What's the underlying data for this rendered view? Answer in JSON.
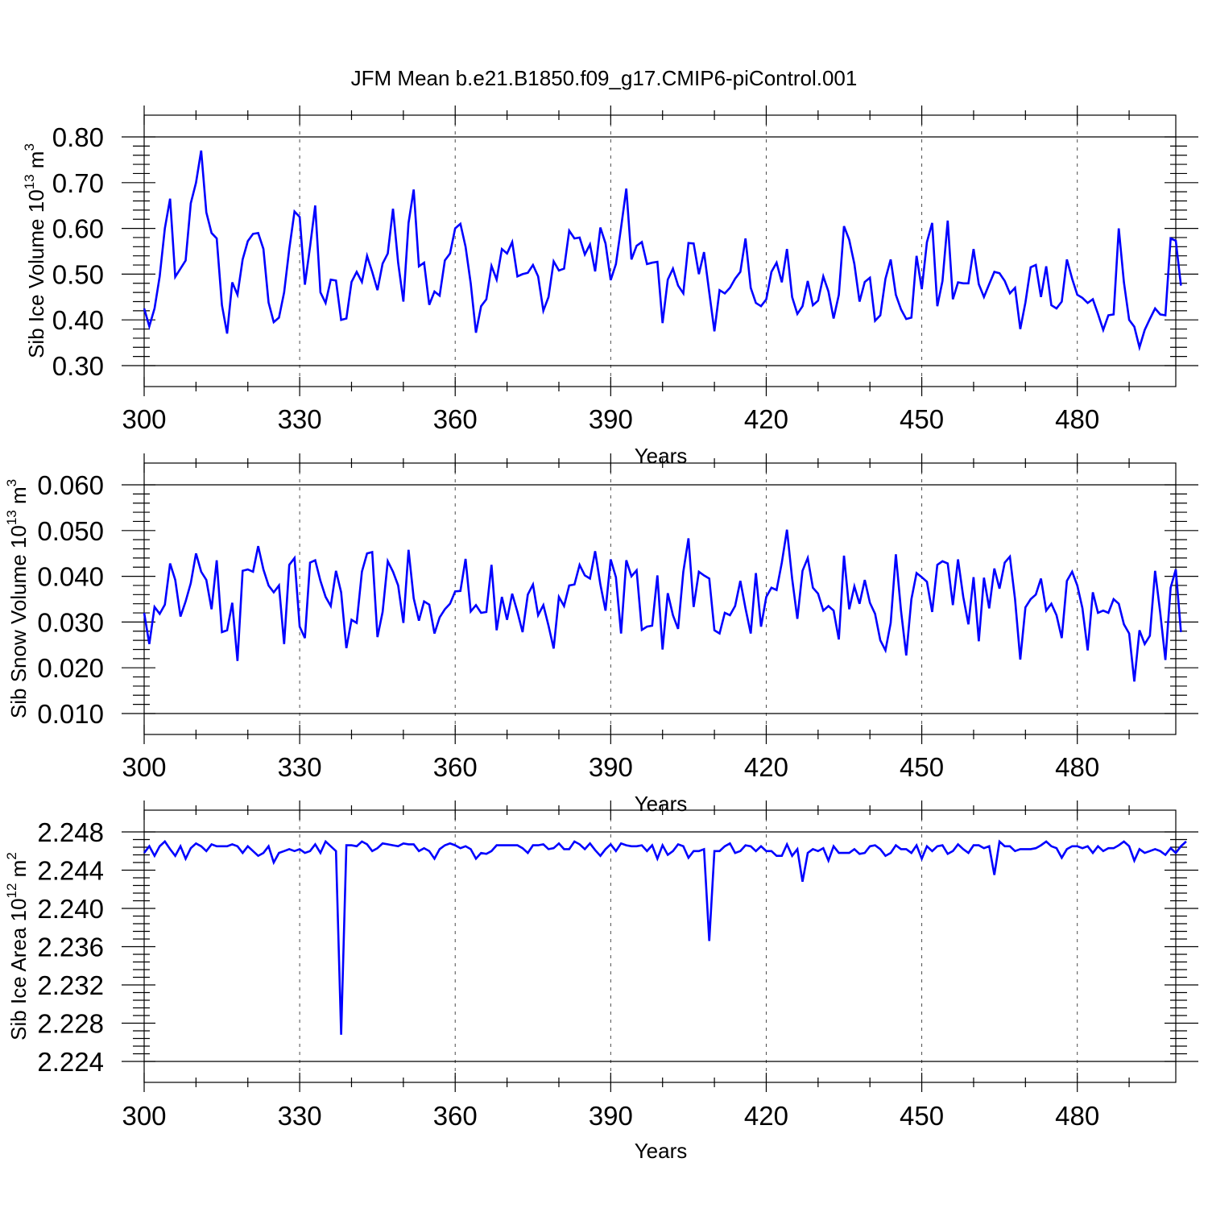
{
  "title": "JFM Mean b.e21.B1850.f09_g17.CMIP6-piControl.001",
  "chart_data": [
    {
      "type": "line",
      "ylabel": {
        "main": "Sib Ice Volume 10",
        "exp": "13",
        "unit": " m",
        "unit_exp": "3"
      },
      "xlabel": "Years",
      "xlim": [
        300,
        499
      ],
      "ylim": [
        0.3,
        0.8
      ],
      "xticks": [
        300,
        330,
        360,
        390,
        420,
        450,
        480
      ],
      "xtick_labels": [
        "300",
        "330",
        "360",
        "390",
        "420",
        "450",
        "480"
      ],
      "yticks": [
        0.3,
        0.4,
        0.5,
        0.6,
        0.7,
        0.8
      ],
      "ytick_labels": [
        "0.30",
        "0.40",
        "0.50",
        "0.60",
        "0.70",
        "0.80"
      ],
      "x_start": 300,
      "color": "#0000ff",
      "values": [
        0.425,
        0.386,
        0.425,
        0.495,
        0.6,
        0.665,
        0.494,
        0.512,
        0.53,
        0.655,
        0.7,
        0.77,
        0.635,
        0.59,
        0.578,
        0.432,
        0.37,
        0.482,
        0.455,
        0.532,
        0.572,
        0.588,
        0.59,
        0.555,
        0.438,
        0.395,
        0.405,
        0.46,
        0.555,
        0.637,
        0.625,
        0.477,
        0.56,
        0.65,
        0.46,
        0.437,
        0.488,
        0.486,
        0.4,
        0.403,
        0.483,
        0.505,
        0.483,
        0.54,
        0.505,
        0.465,
        0.523,
        0.545,
        0.643,
        0.525,
        0.44,
        0.612,
        0.685,
        0.517,
        0.525,
        0.433,
        0.462,
        0.453,
        0.53,
        0.545,
        0.6,
        0.61,
        0.56,
        0.48,
        0.372,
        0.43,
        0.445,
        0.518,
        0.488,
        0.555,
        0.545,
        0.57,
        0.495,
        0.5,
        0.503,
        0.52,
        0.495,
        0.42,
        0.45,
        0.528,
        0.508,
        0.512,
        0.595,
        0.578,
        0.58,
        0.543,
        0.565,
        0.506,
        0.602,
        0.567,
        0.487,
        0.522,
        0.602,
        0.687,
        0.532,
        0.562,
        0.57,
        0.522,
        0.525,
        0.527,
        0.393,
        0.488,
        0.512,
        0.475,
        0.458,
        0.568,
        0.567,
        0.5,
        0.548,
        0.46,
        0.375,
        0.465,
        0.458,
        0.47,
        0.49,
        0.505,
        0.578,
        0.47,
        0.437,
        0.43,
        0.445,
        0.505,
        0.525,
        0.482,
        0.555,
        0.45,
        0.413,
        0.43,
        0.485,
        0.432,
        0.442,
        0.495,
        0.462,
        0.403,
        0.455,
        0.605,
        0.575,
        0.522,
        0.44,
        0.483,
        0.492,
        0.398,
        0.41,
        0.49,
        0.532,
        0.455,
        0.423,
        0.402,
        0.405,
        0.54,
        0.467,
        0.57,
        0.612,
        0.43,
        0.485,
        0.617,
        0.445,
        0.482,
        0.48,
        0.48,
        0.555,
        0.478,
        0.45,
        0.478,
        0.505,
        0.502,
        0.485,
        0.458,
        0.47,
        0.38,
        0.438,
        0.515,
        0.52,
        0.45,
        0.517,
        0.432,
        0.425,
        0.44,
        0.532,
        0.49,
        0.455,
        0.448,
        0.437,
        0.445,
        0.413,
        0.378,
        0.41,
        0.412,
        0.6,
        0.482,
        0.4,
        0.385,
        0.34,
        0.378,
        0.402,
        0.425,
        0.412,
        0.41,
        0.578,
        0.573,
        0.475
      ]
    },
    {
      "type": "line",
      "ylabel": {
        "main": "Sib Snow Volume 10",
        "exp": "13",
        "unit": " m",
        "unit_exp": "3"
      },
      "xlabel": "Years",
      "xlim": [
        300,
        499
      ],
      "ylim": [
        0.01,
        0.06
      ],
      "xticks": [
        300,
        330,
        360,
        390,
        420,
        450,
        480
      ],
      "xtick_labels": [
        "300",
        "330",
        "360",
        "390",
        "420",
        "450",
        "480"
      ],
      "yticks": [
        0.01,
        0.02,
        0.03,
        0.04,
        0.05,
        0.06
      ],
      "ytick_labels": [
        "0.010",
        "0.020",
        "0.030",
        "0.040",
        "0.050",
        "0.060"
      ],
      "x_start": 300,
      "color": "#0000ff",
      "values": [
        0.032,
        0.0252,
        0.0333,
        0.0318,
        0.0338,
        0.0428,
        0.0392,
        0.0312,
        0.0345,
        0.0385,
        0.045,
        0.041,
        0.0392,
        0.0328,
        0.0435,
        0.0278,
        0.0282,
        0.0342,
        0.0215,
        0.0412,
        0.0415,
        0.041,
        0.0466,
        0.0415,
        0.038,
        0.0365,
        0.038,
        0.0252,
        0.0425,
        0.044,
        0.029,
        0.0265,
        0.043,
        0.0435,
        0.039,
        0.0355,
        0.0335,
        0.0412,
        0.0365,
        0.0243,
        0.0305,
        0.0298,
        0.041,
        0.045,
        0.0453,
        0.0267,
        0.0322,
        0.0433,
        0.041,
        0.038,
        0.0298,
        0.0458,
        0.0352,
        0.0303,
        0.0345,
        0.0338,
        0.0275,
        0.031,
        0.0328,
        0.034,
        0.0367,
        0.0368,
        0.0438,
        0.0323,
        0.0337,
        0.032,
        0.0322,
        0.0425,
        0.0282,
        0.0355,
        0.0305,
        0.0362,
        0.0322,
        0.0278,
        0.036,
        0.0382,
        0.0315,
        0.0337,
        0.0292,
        0.0242,
        0.0355,
        0.0335,
        0.038,
        0.0382,
        0.0425,
        0.0402,
        0.0395,
        0.0455,
        0.0382,
        0.0325,
        0.0437,
        0.0398,
        0.0275,
        0.0435,
        0.04,
        0.0413,
        0.0283,
        0.029,
        0.0292,
        0.0402,
        0.024,
        0.0363,
        0.0315,
        0.0285,
        0.041,
        0.0483,
        0.0333,
        0.041,
        0.0402,
        0.0395,
        0.0282,
        0.0275,
        0.032,
        0.0315,
        0.0335,
        0.039,
        0.033,
        0.0275,
        0.0407,
        0.029,
        0.0355,
        0.0375,
        0.037,
        0.043,
        0.0502,
        0.0395,
        0.0307,
        0.0412,
        0.044,
        0.0375,
        0.0362,
        0.0325,
        0.0335,
        0.0325,
        0.0262,
        0.0445,
        0.0328,
        0.0378,
        0.034,
        0.0392,
        0.0342,
        0.0318,
        0.026,
        0.0238,
        0.0298,
        0.0448,
        0.0325,
        0.0227,
        0.035,
        0.0407,
        0.0398,
        0.0388,
        0.0322,
        0.0425,
        0.0433,
        0.0428,
        0.0337,
        0.0437,
        0.0355,
        0.0295,
        0.0398,
        0.0258,
        0.0397,
        0.033,
        0.0417,
        0.0373,
        0.043,
        0.0443,
        0.035,
        0.0218,
        0.0332,
        0.035,
        0.036,
        0.0395,
        0.0325,
        0.034,
        0.0315,
        0.0265,
        0.039,
        0.041,
        0.038,
        0.033,
        0.0238,
        0.0365,
        0.032,
        0.0325,
        0.032,
        0.035,
        0.034,
        0.0295,
        0.0275,
        0.017,
        0.0282,
        0.0252,
        0.027,
        0.0412,
        0.032,
        0.0217,
        0.0375,
        0.0415,
        0.0278
      ]
    },
    {
      "type": "line",
      "ylabel": {
        "main": "Sib Ice Area 10",
        "exp": "12",
        "unit": " m",
        "unit_exp": "2"
      },
      "xlabel": "Years",
      "xlim": [
        300,
        499
      ],
      "ylim": [
        2.224,
        2.249
      ],
      "xticks": [
        300,
        330,
        360,
        390,
        420,
        450,
        480
      ],
      "xtick_labels": [
        "300",
        "330",
        "360",
        "390",
        "420",
        "450",
        "480"
      ],
      "yticks": [
        2.224,
        2.228,
        2.232,
        2.236,
        2.24,
        2.244,
        2.248
      ],
      "ytick_labels": [
        "2.224",
        "2.228",
        "2.232",
        "2.236",
        "2.240",
        "2.244",
        "2.248"
      ],
      "x_start": 300,
      "color": "#0000ff",
      "values": [
        2.2458,
        2.2465,
        2.2455,
        2.2465,
        2.247,
        2.2462,
        2.2455,
        2.2465,
        2.2452,
        2.2463,
        2.2468,
        2.2465,
        2.246,
        2.2467,
        2.2465,
        2.2465,
        2.2465,
        2.2467,
        2.2465,
        2.2458,
        2.2465,
        2.246,
        2.2455,
        2.2458,
        2.2465,
        2.2448,
        2.2458,
        2.246,
        2.2462,
        2.246,
        2.2462,
        2.2458,
        2.246,
        2.2467,
        2.2458,
        2.247,
        2.2465,
        2.246,
        2.2268,
        2.2466,
        2.2466,
        2.2465,
        2.247,
        2.2467,
        2.246,
        2.2463,
        2.2468,
        2.2467,
        2.2466,
        2.2465,
        2.2468,
        2.2467,
        2.2467,
        2.246,
        2.2463,
        2.246,
        2.2452,
        2.2462,
        2.2466,
        2.2468,
        2.2466,
        2.2463,
        2.2465,
        2.2462,
        2.2452,
        2.2458,
        2.2457,
        2.246,
        2.2466,
        2.2466,
        2.2466,
        2.2466,
        2.2466,
        2.2463,
        2.2458,
        2.2466,
        2.2466,
        2.2467,
        2.2462,
        2.2463,
        2.2468,
        2.2462,
        2.2462,
        2.247,
        2.2467,
        2.2462,
        2.2468,
        2.2461,
        2.2455,
        2.2462,
        2.2467,
        2.246,
        2.2468,
        2.2466,
        2.2465,
        2.2465,
        2.2466,
        2.246,
        2.2466,
        2.2452,
        2.2466,
        2.2456,
        2.246,
        2.2467,
        2.2465,
        2.2453,
        2.246,
        2.246,
        2.2462,
        2.2366,
        2.246,
        2.246,
        2.2465,
        2.2468,
        2.2458,
        2.246,
        2.2466,
        2.2465,
        2.246,
        2.2465,
        2.246,
        2.246,
        2.2455,
        2.2455,
        2.2467,
        2.2455,
        2.2462,
        2.2428,
        2.2458,
        2.2462,
        2.246,
        2.2463,
        2.245,
        2.2465,
        2.2458,
        2.2458,
        2.2458,
        2.2462,
        2.2457,
        2.2458,
        2.2465,
        2.2466,
        2.2462,
        2.2455,
        2.2458,
        2.2466,
        2.2462,
        2.2462,
        2.2458,
        2.2466,
        2.2452,
        2.2465,
        2.246,
        2.2465,
        2.2466,
        2.2457,
        2.246,
        2.2467,
        2.2462,
        2.2458,
        2.2466,
        2.2466,
        2.2463,
        2.2465,
        2.2435,
        2.247,
        2.2465,
        2.2465,
        2.246,
        2.2462,
        2.2462,
        2.2462,
        2.2463,
        2.2466,
        2.247,
        2.2465,
        2.2463,
        2.2453,
        2.2462,
        2.2465,
        2.2465,
        2.2463,
        2.2465,
        2.2458,
        2.2465,
        2.246,
        2.2463,
        2.2463,
        2.2466,
        2.247,
        2.2465,
        2.245,
        2.2462,
        2.2458,
        2.246,
        2.2462,
        2.246,
        2.2456,
        2.2463,
        2.2458,
        2.2465,
        2.247
      ]
    }
  ]
}
